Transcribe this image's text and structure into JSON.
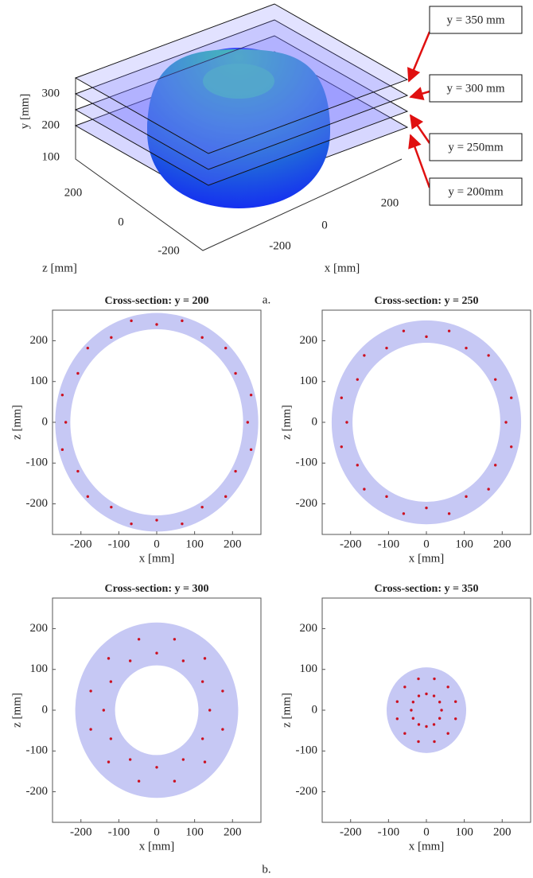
{
  "figure_a": {
    "y_label": "y [mm]",
    "z_label": "z [mm]",
    "x_label": "x [mm]",
    "y_ticks": [
      "300",
      "200",
      "100"
    ],
    "z_ticks": [
      "200",
      "0",
      "-200"
    ],
    "x_ticks": [
      "-200",
      "0",
      "200"
    ],
    "annotations": [
      "y = 350 mm",
      "y = 300 mm",
      "y = 250mm",
      "y = 200mm"
    ],
    "caption": "a."
  },
  "caption_b": "b.",
  "chart_data": [
    {
      "type": "scatter",
      "title": "Cross-section: y = 200",
      "xlabel": "x [mm]",
      "ylabel": "z [mm]",
      "xlim": [
        -275,
        275
      ],
      "ylim": [
        -275,
        275
      ],
      "xticks": [
        -200,
        -100,
        0,
        100,
        200
      ],
      "yticks": [
        -200,
        -100,
        0,
        100,
        200
      ],
      "band": {
        "color": "#c6c8f4",
        "inner_radius": 228,
        "outer_radius": 268
      },
      "points": {
        "color": "#cc1020",
        "x": [
          240,
          208,
          120,
          0,
          -120,
          -208,
          -240,
          -208,
          -120,
          0,
          120,
          208,
          249,
          182,
          67,
          -67,
          -182,
          -249,
          -249,
          -182,
          -67,
          67,
          182,
          249
        ],
        "y": [
          0,
          120,
          208,
          240,
          208,
          120,
          0,
          -120,
          -208,
          -240,
          -208,
          -120,
          67,
          182,
          249,
          249,
          182,
          67,
          -67,
          -182,
          -249,
          -249,
          -182,
          -67
        ]
      }
    },
    {
      "type": "scatter",
      "title": "Cross-section: y = 250",
      "xlabel": "x [mm]",
      "ylabel": "z [mm]",
      "xlim": [
        -275,
        275
      ],
      "ylim": [
        -275,
        275
      ],
      "xticks": [
        -200,
        -100,
        0,
        100,
        200
      ],
      "yticks": [
        -200,
        -100,
        0,
        100,
        200
      ],
      "band": {
        "color": "#c6c8f4",
        "inner_radius": 195,
        "outer_radius": 250
      },
      "points": {
        "color": "#cc1020",
        "x": [
          210,
          182,
          105,
          0,
          -105,
          -182,
          -210,
          -182,
          -105,
          0,
          105,
          182,
          224,
          164,
          60,
          -60,
          -164,
          -224,
          -224,
          -164,
          -60,
          60,
          164,
          224
        ],
        "y": [
          0,
          105,
          182,
          210,
          182,
          105,
          0,
          -105,
          -182,
          -210,
          -182,
          -105,
          60,
          164,
          224,
          224,
          164,
          60,
          -60,
          -164,
          -224,
          -224,
          -164,
          -60
        ]
      }
    },
    {
      "type": "scatter",
      "title": "Cross-section: y = 300",
      "xlabel": "x [mm]",
      "ylabel": "z [mm]",
      "xlim": [
        -275,
        275
      ],
      "ylim": [
        -275,
        275
      ],
      "xticks": [
        -200,
        -100,
        0,
        100,
        200
      ],
      "yticks": [
        -200,
        -100,
        0,
        100,
        200
      ],
      "band": {
        "color": "#c6c8f4",
        "inner_radius": 110,
        "outer_radius": 215
      },
      "points": {
        "color": "#cc1020",
        "x": [
          140,
          121,
          70,
          0,
          -70,
          -121,
          -140,
          -121,
          -70,
          0,
          70,
          121,
          174,
          127,
          47,
          -47,
          -127,
          -174,
          -174,
          -127,
          -47,
          47,
          127,
          174
        ],
        "y": [
          0,
          70,
          121,
          140,
          121,
          70,
          0,
          -70,
          -121,
          -140,
          -121,
          -70,
          47,
          127,
          174,
          174,
          127,
          47,
          -47,
          -127,
          -174,
          -174,
          -127,
          -47
        ]
      }
    },
    {
      "type": "scatter",
      "title": "Cross-section: y = 350",
      "xlabel": "x [mm]",
      "ylabel": "z [mm]",
      "xlim": [
        -275,
        275
      ],
      "ylim": [
        -275,
        275
      ],
      "xticks": [
        -200,
        -100,
        0,
        100,
        200
      ],
      "yticks": [
        -200,
        -100,
        0,
        100,
        200
      ],
      "band": {
        "color": "#c6c8f4",
        "inner_radius": 0,
        "outer_radius": 105
      },
      "points": {
        "color": "#cc1020",
        "x": [
          40,
          35,
          20,
          0,
          -20,
          -35,
          -40,
          -35,
          -20,
          0,
          20,
          35,
          77,
          57,
          21,
          -21,
          -57,
          -77,
          -77,
          -57,
          -21,
          21,
          57,
          77
        ],
        "y": [
          0,
          20,
          35,
          40,
          35,
          20,
          0,
          -20,
          -35,
          -40,
          -35,
          -20,
          21,
          57,
          77,
          77,
          57,
          21,
          -21,
          -57,
          -77,
          -77,
          -57,
          -21
        ]
      }
    }
  ]
}
